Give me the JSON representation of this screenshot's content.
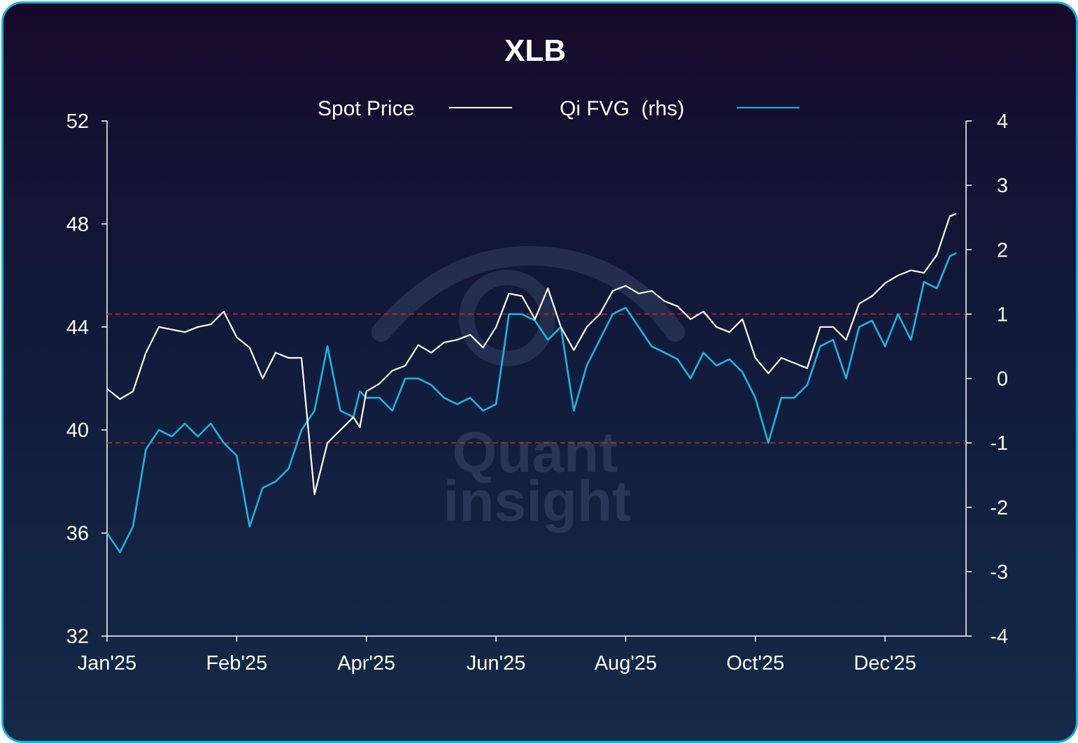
{
  "chart_data": {
    "type": "line",
    "title": "XLB",
    "watermark": [
      "Quant",
      "insight"
    ],
    "x_tick_labels": [
      "Jan'25",
      "Feb'25",
      "Apr'25",
      "Jun'25",
      "Aug'25",
      "Oct'25",
      "Dec'25"
    ],
    "x_ticks_month_index": [
      0,
      2,
      4,
      6,
      8,
      10,
      12
    ],
    "x_range_month_index": [
      0,
      13.25
    ],
    "y_left": {
      "ylim": [
        32,
        52
      ],
      "ticks": [
        32,
        36,
        40,
        44,
        48,
        52
      ],
      "labels": [
        "32",
        "36",
        "40",
        "44",
        "48",
        "52"
      ]
    },
    "y_right": {
      "ylim": [
        -4,
        4
      ],
      "ticks": [
        -4,
        -3,
        -2,
        -1,
        0,
        1,
        2,
        3,
        4
      ],
      "labels": [
        "-4",
        "-3",
        "-2",
        "-1",
        "0",
        "1",
        "2",
        "3",
        "4"
      ]
    },
    "reference_lines_rhs": [
      1,
      -1
    ],
    "grid": false,
    "legend_placement": "top-center",
    "series": [
      {
        "name": "Spot Price",
        "axis": "left",
        "color": "#ffffff",
        "x": [
          0,
          0.2,
          0.4,
          0.6,
          0.8,
          1.0,
          1.2,
          1.4,
          1.6,
          1.8,
          2.0,
          2.2,
          2.4,
          2.6,
          2.8,
          3.0,
          3.2,
          3.4,
          3.6,
          3.8,
          3.9,
          4.0,
          4.2,
          4.4,
          4.6,
          4.8,
          5.0,
          5.2,
          5.4,
          5.6,
          5.8,
          6.0,
          6.2,
          6.4,
          6.6,
          6.8,
          7.0,
          7.2,
          7.4,
          7.6,
          7.8,
          8.0,
          8.2,
          8.4,
          8.6,
          8.8,
          9.0,
          9.2,
          9.4,
          9.6,
          9.8,
          10.0,
          10.2,
          10.4,
          10.6,
          10.8,
          11.0,
          11.2,
          11.4,
          11.6,
          11.8,
          12.0,
          12.2,
          12.4,
          12.6,
          12.8,
          13.0,
          13.1
        ],
        "values": [
          41.6,
          41.2,
          41.5,
          43.0,
          44.0,
          43.9,
          43.8,
          44.0,
          44.1,
          44.6,
          43.6,
          43.2,
          42.0,
          43.0,
          42.8,
          42.8,
          37.5,
          39.5,
          40.0,
          40.5,
          40.1,
          41.5,
          41.8,
          42.3,
          42.5,
          43.3,
          43.0,
          43.4,
          43.5,
          43.7,
          43.2,
          44.0,
          45.3,
          45.2,
          44.3,
          45.5,
          44.0,
          43.1,
          44.0,
          44.5,
          45.4,
          45.6,
          45.3,
          45.4,
          45.0,
          44.8,
          44.3,
          44.6,
          44.0,
          43.8,
          44.3,
          42.8,
          42.2,
          42.8,
          42.6,
          42.4,
          44.0,
          44.0,
          43.5,
          44.9,
          45.2,
          45.7,
          46.0,
          46.2,
          46.1,
          46.8,
          48.3,
          48.4
        ]
      },
      {
        "name": "Qi FVG  (rhs)",
        "axis": "right",
        "color": "#19b6e6",
        "x": [
          0,
          0.2,
          0.4,
          0.6,
          0.8,
          1.0,
          1.2,
          1.4,
          1.6,
          1.8,
          2.0,
          2.2,
          2.4,
          2.6,
          2.8,
          3.0,
          3.2,
          3.4,
          3.6,
          3.8,
          3.9,
          4.0,
          4.2,
          4.4,
          4.6,
          4.8,
          5.0,
          5.2,
          5.4,
          5.6,
          5.8,
          6.0,
          6.2,
          6.4,
          6.6,
          6.8,
          7.0,
          7.2,
          7.4,
          7.6,
          7.8,
          8.0,
          8.2,
          8.4,
          8.6,
          8.8,
          9.0,
          9.2,
          9.4,
          9.6,
          9.8,
          10.0,
          10.2,
          10.4,
          10.6,
          10.8,
          11.0,
          11.2,
          11.4,
          11.6,
          11.8,
          12.0,
          12.2,
          12.4,
          12.6,
          12.8,
          13.0,
          13.1
        ],
        "values": [
          -2.4,
          -2.7,
          -2.3,
          -1.1,
          -0.8,
          -0.9,
          -0.7,
          -0.9,
          -0.7,
          -1.0,
          -1.2,
          -2.3,
          -1.7,
          -1.6,
          -1.4,
          -0.8,
          -0.5,
          0.5,
          -0.5,
          -0.6,
          -0.2,
          -0.3,
          -0.3,
          -0.5,
          0.0,
          0.0,
          -0.1,
          -0.3,
          -0.4,
          -0.3,
          -0.5,
          -0.4,
          1.0,
          1.0,
          0.9,
          0.6,
          0.8,
          -0.5,
          0.2,
          0.6,
          1.0,
          1.1,
          0.8,
          0.5,
          0.4,
          0.3,
          0.0,
          0.4,
          0.2,
          0.3,
          0.1,
          -0.3,
          -1.0,
          -0.3,
          -0.3,
          -0.1,
          0.5,
          0.6,
          0.0,
          0.8,
          0.9,
          0.5,
          1.0,
          0.6,
          1.5,
          1.4,
          1.9,
          1.95
        ]
      }
    ]
  }
}
